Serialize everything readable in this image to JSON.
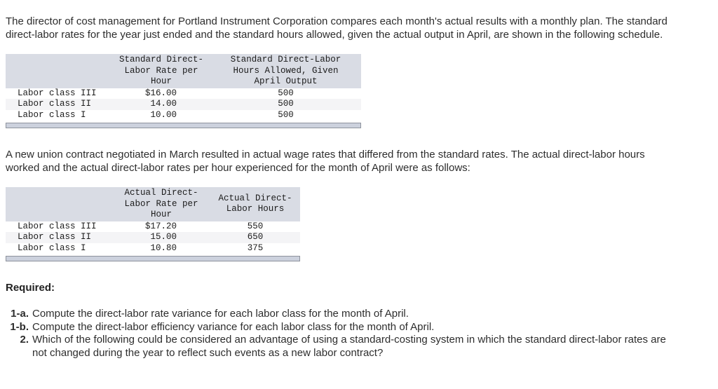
{
  "colors": {
    "page_background": "#ffffff",
    "body_text": "#2d2d2d",
    "table_text": "#1b1b1b",
    "table_header_background": "#d9dce4",
    "table_stripe_background": "#f4f4f6",
    "scrollbar_fill": "#ccd1dd",
    "scrollbar_border": "#8e939d"
  },
  "intro_paragraph": "The director of cost management for Portland Instrument Corporation compares each month's actual results with a monthly plan. The standard direct-labor rates for the year just ended and the standard hours allowed, given the actual output in April, are shown in the following schedule.",
  "standard_table": {
    "columns": [
      "",
      "Standard Direct-Labor Rate per Hour",
      "Standard Direct-Labor Hours Allowed, Given April Output"
    ],
    "rows": [
      {
        "label": "Labor class III",
        "rate": "$16.00",
        "hours": "500"
      },
      {
        "label": "Labor class II",
        "rate": "14.00",
        "hours": "500"
      },
      {
        "label": "Labor class I",
        "rate": "10.00",
        "hours": "500"
      }
    ]
  },
  "middle_paragraph": "A new union contract negotiated in March resulted in actual wage rates that differed from the standard rates. The actual direct-labor hours worked and the actual direct-labor rates per hour experienced for the month of April were as follows:",
  "actual_table": {
    "columns": [
      "",
      "Actual Direct-Labor Rate per Hour",
      "Actual Direct-Labor Hours"
    ],
    "rows": [
      {
        "label": "Labor class III",
        "rate": "$17.20",
        "hours": "550"
      },
      {
        "label": "Labor class II",
        "rate": "15.00",
        "hours": "650"
      },
      {
        "label": "Labor class I",
        "rate": "10.80",
        "hours": "375"
      }
    ]
  },
  "required": {
    "heading": "Required:",
    "items": [
      {
        "label": "1-a.",
        "text": "Compute the direct-labor rate variance for each labor class for the month of April."
      },
      {
        "label": "1-b.",
        "text": "Compute the direct-labor efficiency variance for each labor class for the month of April."
      },
      {
        "label": "2.",
        "text": "Which of the following could be considered an advantage of using a standard-costing system in which the standard direct-labor rates are not changed during the year to reflect such events as a new labor contract?"
      }
    ]
  }
}
